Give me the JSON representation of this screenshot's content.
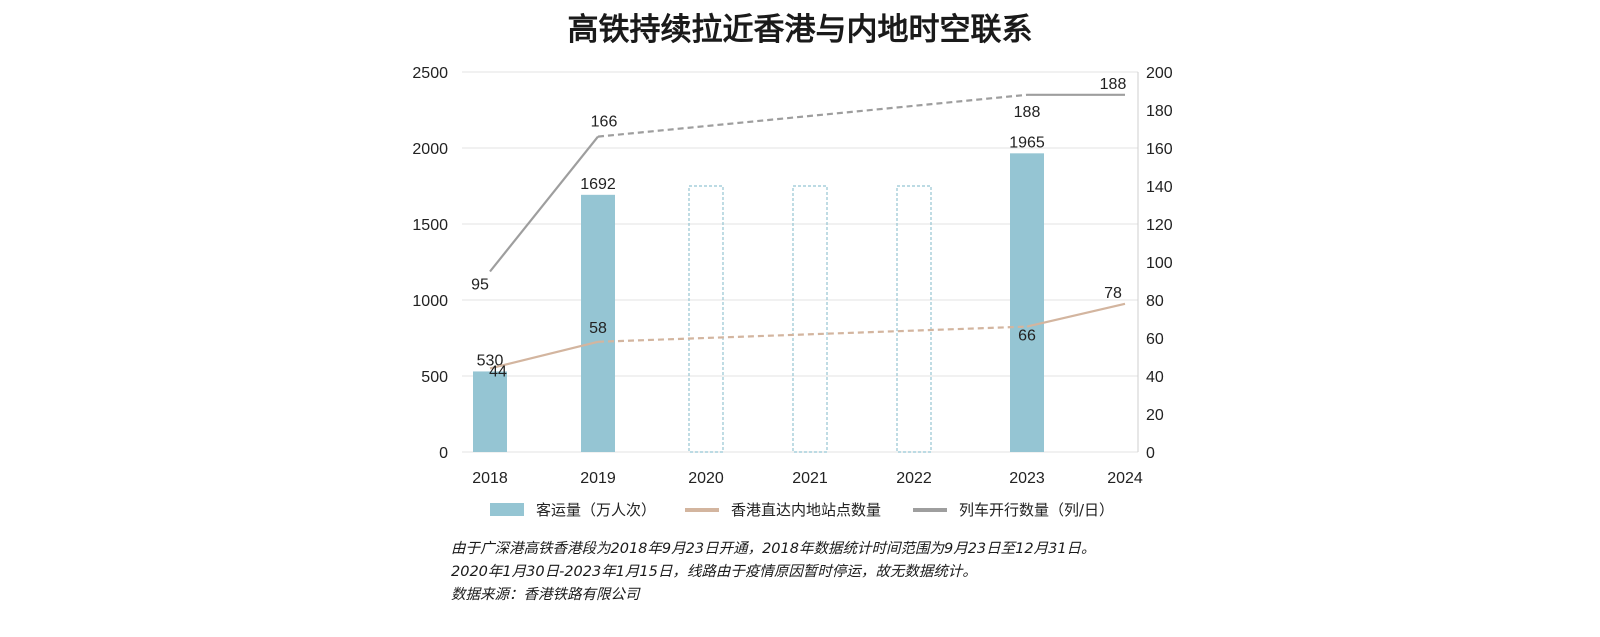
{
  "chart_data": {
    "type": "bar",
    "title": "高铁持续拉近香港与内地时空联系",
    "categories": [
      "2018",
      "2019",
      "2020",
      "2021",
      "2022",
      "2023",
      "2024"
    ],
    "left_axis": {
      "range": [
        0,
        2500
      ],
      "ticks": [
        "0",
        "500",
        "1000",
        "1500",
        "2000",
        "2500"
      ]
    },
    "right_axis": {
      "range": [
        0,
        200
      ],
      "ticks": [
        "0",
        "20",
        "40",
        "60",
        "80",
        "100",
        "120",
        "140",
        "160",
        "180",
        "200"
      ]
    },
    "bar_series": {
      "name": "客运量（万人次）",
      "color": "#95c5d3",
      "values": [
        530,
        1692,
        null,
        null,
        null,
        1965,
        null
      ],
      "labels": [
        "530",
        "1692",
        "",
        "",
        "",
        "1965",
        ""
      ],
      "outlined_years": [
        "2020",
        "2021",
        "2022"
      ],
      "outlined_value": 1750
    },
    "line_series": [
      {
        "name": "香港直达内地站点数量",
        "color": "#d3b59f",
        "axis": "right",
        "points": [
          {
            "x": "2018",
            "y": 44,
            "label": "44"
          },
          {
            "x": "2019",
            "y": 58,
            "label": "58"
          },
          {
            "x": "2023",
            "y": 66,
            "label": "66"
          },
          {
            "x": "2024",
            "y": 78,
            "label": "78"
          }
        ]
      },
      {
        "name": "列车开行数量（列/日）",
        "color": "#9e9e9e",
        "axis": "right",
        "points": [
          {
            "x": "2018",
            "y": 95,
            "label": "95"
          },
          {
            "x": "2019",
            "y": 166,
            "label": "166"
          },
          {
            "x": "2023",
            "y": 188,
            "label": "188"
          },
          {
            "x": "2024",
            "y": 188,
            "label": "188"
          }
        ]
      }
    ],
    "grid": true,
    "legend_position": "bottom"
  },
  "notes": [
    "由于广深港高铁香港段为2018年9月23日开通，2018年数据统计时间范围为9月23日至12月31日。",
    "2020年1月30日-2023年1月15日，线路由于疫情原因暂时停运，故无数据统计。",
    "数据来源：香港铁路有限公司"
  ]
}
